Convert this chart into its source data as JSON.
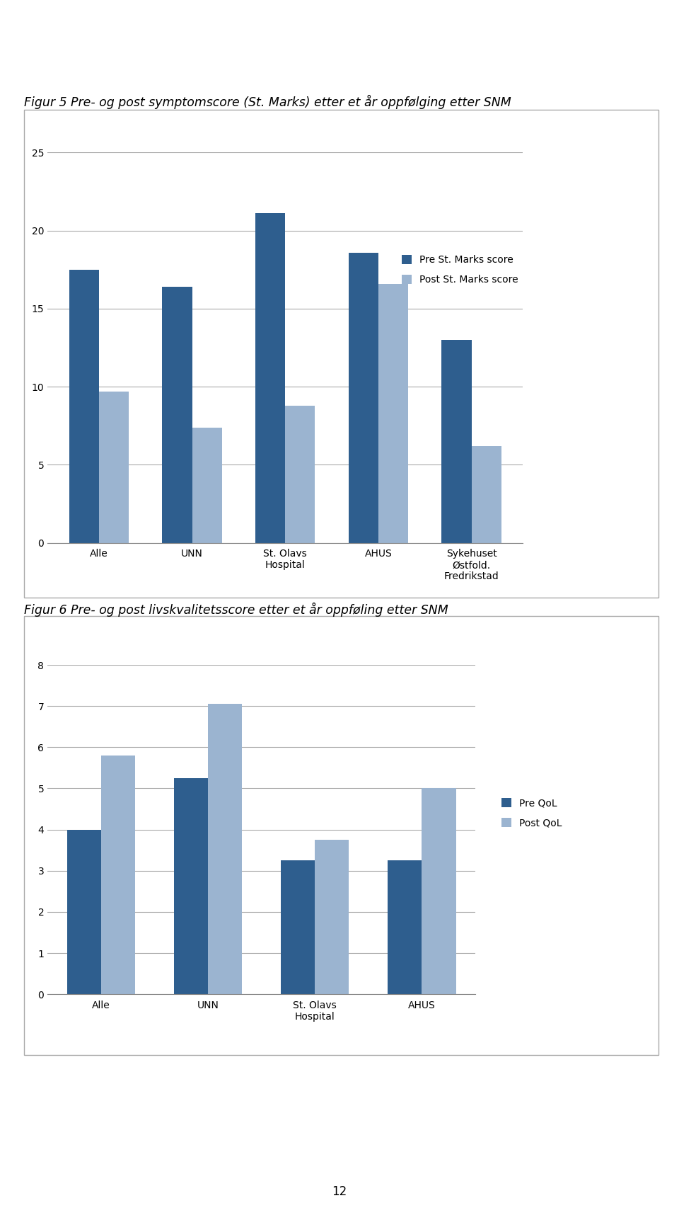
{
  "fig1_title": "Figur 5 Pre- og post symptomscore (St. Marks) etter et år oppfølging etter SNM",
  "fig1_categories": [
    "Alle",
    "UNN",
    "St. Olavs\nHospital",
    "AHUS",
    "Sykehuset\nØstfold.\nFredrikstad"
  ],
  "fig1_pre": [
    17.5,
    16.4,
    21.1,
    18.6,
    13.0
  ],
  "fig1_post": [
    9.7,
    7.4,
    8.8,
    16.6,
    6.2
  ],
  "fig1_pre_label": "Pre St. Marks score",
  "fig1_post_label": "Post St. Marks score",
  "fig1_ylim": [
    0,
    25
  ],
  "fig1_yticks": [
    0,
    5,
    10,
    15,
    20,
    25
  ],
  "fig2_title": "Figur 6 Pre- og post livskvalitetsscore etter et år oppføling etter SNM",
  "fig2_categories": [
    "Alle",
    "UNN",
    "St. Olavs\nHospital",
    "AHUS"
  ],
  "fig2_pre": [
    4.0,
    5.25,
    3.25,
    3.25
  ],
  "fig2_post": [
    5.8,
    7.05,
    3.75,
    5.0
  ],
  "fig2_pre_label": "Pre QoL",
  "fig2_post_label": "Post QoL",
  "fig2_ylim": [
    0,
    8
  ],
  "fig2_yticks": [
    0,
    1,
    2,
    3,
    4,
    5,
    6,
    7,
    8
  ],
  "pre_color": "#2E5E8E",
  "post_color": "#9BB4D0",
  "bar_width": 0.32,
  "page_number": "12",
  "bg_color": "#FFFFFF",
  "title_fontsize": 12.5,
  "tick_fontsize": 10,
  "legend_fontsize": 10
}
